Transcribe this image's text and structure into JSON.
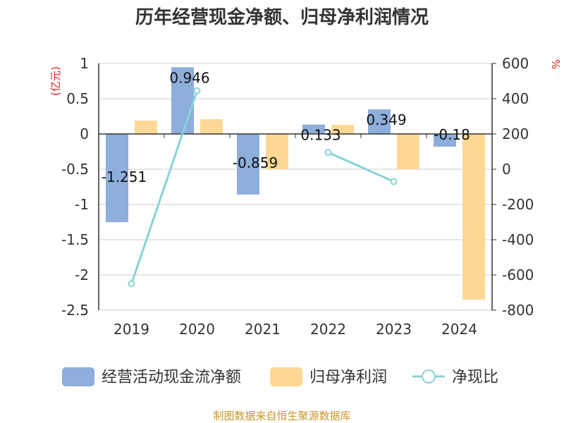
{
  "chart_data": {
    "type": "bar",
    "title": "历年经营现金净额、归母净利润情况",
    "categories": [
      "2019",
      "2020",
      "2021",
      "2022",
      "2023",
      "2024"
    ],
    "left_axis": {
      "unit": "(亿元)",
      "ylim": [
        -2.5,
        1
      ],
      "ticks": [
        1,
        0.5,
        0,
        -0.5,
        -1,
        -1.5,
        -2,
        -2.5
      ],
      "tick_labels": [
        "1",
        "0.5",
        "0",
        "-0.5",
        "-1",
        "-1.5",
        "-2",
        "-2.5"
      ]
    },
    "right_axis": {
      "unit": "%",
      "ylim": [
        -800,
        600
      ],
      "ticks": [
        600,
        400,
        200,
        0,
        -200,
        -400,
        -600,
        -800
      ],
      "tick_labels": [
        "600",
        "400",
        "200",
        "0",
        "-200",
        "-400",
        "-600",
        "-800"
      ]
    },
    "series": [
      {
        "name": "经营活动现金流净额",
        "type": "bar",
        "axis": "left",
        "color": "#8eaedb",
        "values": [
          -1.251,
          0.946,
          -0.859,
          0.133,
          0.349,
          -0.18
        ],
        "data_labels": [
          "-1.251",
          "0.946",
          "-0.859",
          "0.133",
          "0.349",
          "-0.18"
        ]
      },
      {
        "name": "归母净利润",
        "type": "bar",
        "axis": "left",
        "color": "#fed894",
        "values": [
          0.19,
          0.21,
          -0.5,
          0.13,
          -0.5,
          -2.35
        ]
      },
      {
        "name": "净现比",
        "type": "line",
        "axis": "right",
        "color": "#88d3d6",
        "values": [
          -650,
          445,
          null,
          95,
          -70,
          null
        ]
      }
    ],
    "grid": true,
    "legend_position": "bottom",
    "source": "制图数据来自恒生聚源数据库"
  }
}
